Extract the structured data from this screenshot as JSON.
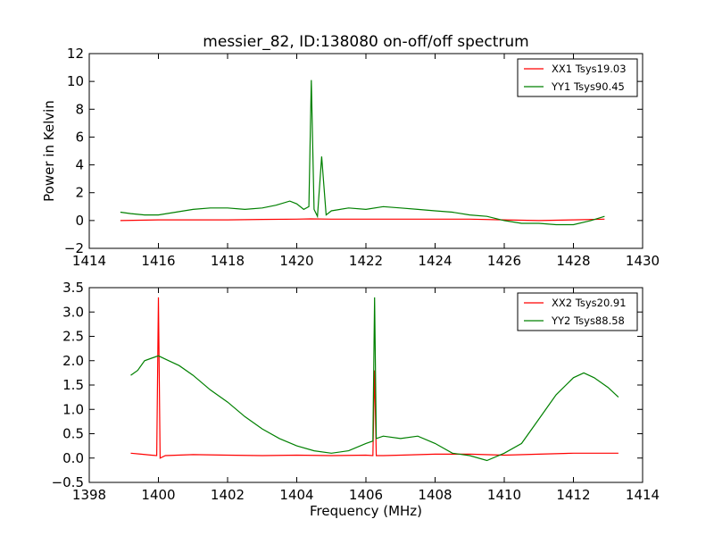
{
  "figure": {
    "title": "messier_82, ID:138080 on-off/off spectrum"
  },
  "chart_data": [
    {
      "type": "line",
      "title": "messier_82, ID:138080 on-off/off spectrum",
      "xlabel": "",
      "ylabel": "Power in Kelvin",
      "xlim": [
        1414,
        1430
      ],
      "ylim": [
        -2,
        12
      ],
      "xticks": [
        1414,
        1416,
        1418,
        1420,
        1422,
        1424,
        1426,
        1428,
        1430
      ],
      "yticks": [
        -2,
        0,
        2,
        4,
        6,
        8,
        10,
        12
      ],
      "grid": false,
      "legend_position": "top-right",
      "series": [
        {
          "name": "XX1 Tsys19.03",
          "color": "#ff0000",
          "x": [
            1414.9,
            1416,
            1417,
            1418,
            1419,
            1420,
            1420.4,
            1421,
            1422,
            1423,
            1424,
            1425,
            1426,
            1427,
            1428,
            1428.9
          ],
          "y": [
            0.0,
            0.05,
            0.05,
            0.05,
            0.08,
            0.1,
            0.12,
            0.1,
            0.1,
            0.1,
            0.1,
            0.1,
            0.05,
            0.0,
            0.05,
            0.1
          ]
        },
        {
          "name": "YY1 Tsys90.45",
          "color": "#008000",
          "x": [
            1414.9,
            1415.2,
            1415.6,
            1416,
            1416.5,
            1417,
            1417.5,
            1418,
            1418.5,
            1419,
            1419.4,
            1419.8,
            1420.0,
            1420.2,
            1420.35,
            1420.42,
            1420.5,
            1420.6,
            1420.72,
            1420.85,
            1421,
            1421.5,
            1422,
            1422.5,
            1423,
            1423.5,
            1424,
            1424.5,
            1425,
            1425.5,
            1426,
            1426.5,
            1427,
            1427.5,
            1428,
            1428.5,
            1428.9
          ],
          "y": [
            0.6,
            0.5,
            0.4,
            0.4,
            0.6,
            0.8,
            0.9,
            0.9,
            0.8,
            0.9,
            1.1,
            1.4,
            1.2,
            0.8,
            1.0,
            10.1,
            0.8,
            0.3,
            4.6,
            0.4,
            0.7,
            0.9,
            0.8,
            1.0,
            0.9,
            0.8,
            0.7,
            0.6,
            0.4,
            0.3,
            0.0,
            -0.2,
            -0.2,
            -0.3,
            -0.3,
            0.0,
            0.3
          ]
        }
      ]
    },
    {
      "type": "line",
      "title": "",
      "xlabel": "Frequency (MHz)",
      "ylabel": "",
      "xlim": [
        1398,
        1414
      ],
      "ylim": [
        -0.5,
        3.5
      ],
      "xticks": [
        1398,
        1400,
        1402,
        1404,
        1406,
        1408,
        1410,
        1412,
        1414
      ],
      "yticks": [
        -0.5,
        0.0,
        0.5,
        1.0,
        1.5,
        2.0,
        2.5,
        3.0,
        3.5
      ],
      "grid": false,
      "legend_position": "top-right",
      "series": [
        {
          "name": "XX2 Tsys20.91",
          "color": "#ff0000",
          "x": [
            1399.2,
            1399.5,
            1399.8,
            1399.95,
            1400.0,
            1400.05,
            1400.2,
            1401,
            1402,
            1403,
            1404,
            1405,
            1406,
            1406.2,
            1406.25,
            1406.3,
            1406.5,
            1407,
            1408,
            1409,
            1410,
            1411,
            1412,
            1413,
            1413.3
          ],
          "y": [
            0.1,
            0.08,
            0.06,
            0.05,
            3.3,
            0.0,
            0.05,
            0.07,
            0.06,
            0.05,
            0.06,
            0.05,
            0.06,
            0.05,
            1.8,
            0.05,
            0.05,
            0.06,
            0.08,
            0.08,
            0.06,
            0.08,
            0.1,
            0.1,
            0.1
          ]
        },
        {
          "name": "YY2 Tsys88.58",
          "color": "#008000",
          "x": [
            1399.2,
            1399.4,
            1399.6,
            1399.8,
            1400.0,
            1400.3,
            1400.6,
            1401.0,
            1401.5,
            1402.0,
            1402.5,
            1403.0,
            1403.5,
            1404.0,
            1404.5,
            1405.0,
            1405.5,
            1406.0,
            1406.2,
            1406.25,
            1406.3,
            1406.5,
            1407.0,
            1407.5,
            1408.0,
            1408.5,
            1409.0,
            1409.5,
            1410.0,
            1410.5,
            1411.0,
            1411.5,
            1412.0,
            1412.3,
            1412.6,
            1413.0,
            1413.3
          ],
          "y": [
            1.7,
            1.8,
            2.0,
            2.05,
            2.1,
            2.0,
            1.9,
            1.7,
            1.4,
            1.15,
            0.85,
            0.6,
            0.4,
            0.25,
            0.15,
            0.1,
            0.15,
            0.3,
            0.35,
            3.3,
            0.4,
            0.45,
            0.4,
            0.45,
            0.3,
            0.1,
            0.05,
            -0.05,
            0.1,
            0.3,
            0.8,
            1.3,
            1.65,
            1.75,
            1.65,
            1.45,
            1.25
          ]
        }
      ]
    }
  ]
}
